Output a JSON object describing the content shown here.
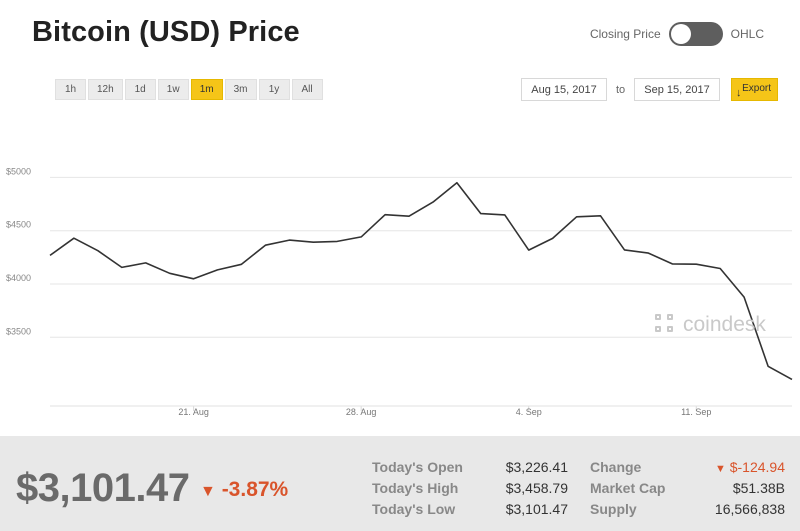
{
  "header": {
    "title": "Bitcoin (USD) Price",
    "toggle_left_label": "Closing Price",
    "toggle_right_label": "OHLC"
  },
  "ranges": [
    "1h",
    "12h",
    "1d",
    "1w",
    "1m",
    "3m",
    "1y",
    "All"
  ],
  "active_range": "1m",
  "date_range": {
    "from": "Aug 15, 2017",
    "to_label": "to",
    "to": "Sep 15, 2017",
    "export_label": "Export"
  },
  "watermark": "coindesk",
  "colors": {
    "accent": "#f5c518",
    "line": "#333333",
    "negative": "#d9542b"
  },
  "chart_data": {
    "type": "line",
    "title": "",
    "xlabel": "",
    "ylabel": "",
    "y_ticks": [
      "$5000",
      "$4500",
      "$4000",
      "$3500"
    ],
    "x_ticks": [
      "21. Aug",
      "28. Aug",
      "4. Sep",
      "11. Sep"
    ],
    "ylim": [
      3000,
      5100
    ],
    "grid": true,
    "x": [
      "2017-08-15",
      "2017-08-16",
      "2017-08-17",
      "2017-08-18",
      "2017-08-19",
      "2017-08-20",
      "2017-08-21",
      "2017-08-22",
      "2017-08-23",
      "2017-08-24",
      "2017-08-25",
      "2017-08-26",
      "2017-08-27",
      "2017-08-28",
      "2017-08-29",
      "2017-08-30",
      "2017-08-31",
      "2017-09-01",
      "2017-09-02",
      "2017-09-03",
      "2017-09-04",
      "2017-09-05",
      "2017-09-06",
      "2017-09-07",
      "2017-09-08",
      "2017-09-09",
      "2017-09-10",
      "2017-09-11",
      "2017-09-12",
      "2017-09-13",
      "2017-09-14",
      "2017-09-15"
    ],
    "series": [
      {
        "values": [
          4268,
          4430,
          4312,
          4156,
          4198,
          4100,
          4049,
          4132,
          4185,
          4364,
          4412,
          4392,
          4400,
          4442,
          4650,
          4636,
          4768,
          4950,
          4660,
          4648,
          4318,
          4428,
          4630,
          4640,
          4320,
          4290,
          4189,
          4186,
          4145,
          3877,
          3228,
          3105
        ]
      }
    ]
  },
  "footer": {
    "price": "$3,101.47",
    "change_pct": "-3.87%",
    "stats": [
      {
        "label": "Today's Open",
        "value": "$3,226.41"
      },
      {
        "label": "Today's High",
        "value": "$3,458.79"
      },
      {
        "label": "Today's Low",
        "value": "$3,101.47"
      },
      {
        "label": "Change",
        "value": "$-124.94"
      },
      {
        "label": "Market Cap",
        "value": "$51.38B"
      },
      {
        "label": "Supply",
        "value": "16,566,838"
      }
    ]
  }
}
